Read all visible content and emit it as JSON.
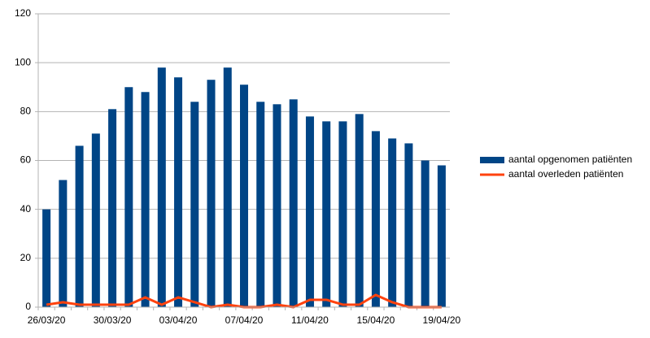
{
  "chart_data": {
    "type": "bar",
    "categories": [
      "26/03/20",
      null,
      null,
      null,
      "30/03/20",
      null,
      null,
      null,
      "03/04/20",
      null,
      null,
      null,
      "07/04/20",
      null,
      null,
      null,
      "11/04/20",
      null,
      null,
      null,
      "15/04/20",
      null,
      null,
      null,
      "19/04/20"
    ],
    "series": [
      {
        "name": "aantal opgenomen patiënten",
        "type": "bar",
        "color": "#004586",
        "values": [
          40,
          52,
          66,
          71,
          81,
          90,
          88,
          98,
          94,
          84,
          93,
          98,
          91,
          84,
          83,
          85,
          78,
          76,
          76,
          79,
          72,
          69,
          67,
          60,
          58
        ]
      },
      {
        "name": "aantal overleden patiënten",
        "type": "line",
        "color": "#ff420e",
        "values": [
          1,
          2,
          1,
          1,
          1,
          1,
          4,
          1,
          4,
          2,
          0,
          1,
          0,
          0,
          1,
          0,
          3,
          3,
          1,
          1,
          5,
          2,
          0,
          0,
          0
        ]
      }
    ],
    "ylim": [
      0,
      120
    ],
    "yticks": [
      0,
      20,
      40,
      60,
      80,
      100,
      120
    ],
    "grid": true,
    "legend": "right"
  }
}
